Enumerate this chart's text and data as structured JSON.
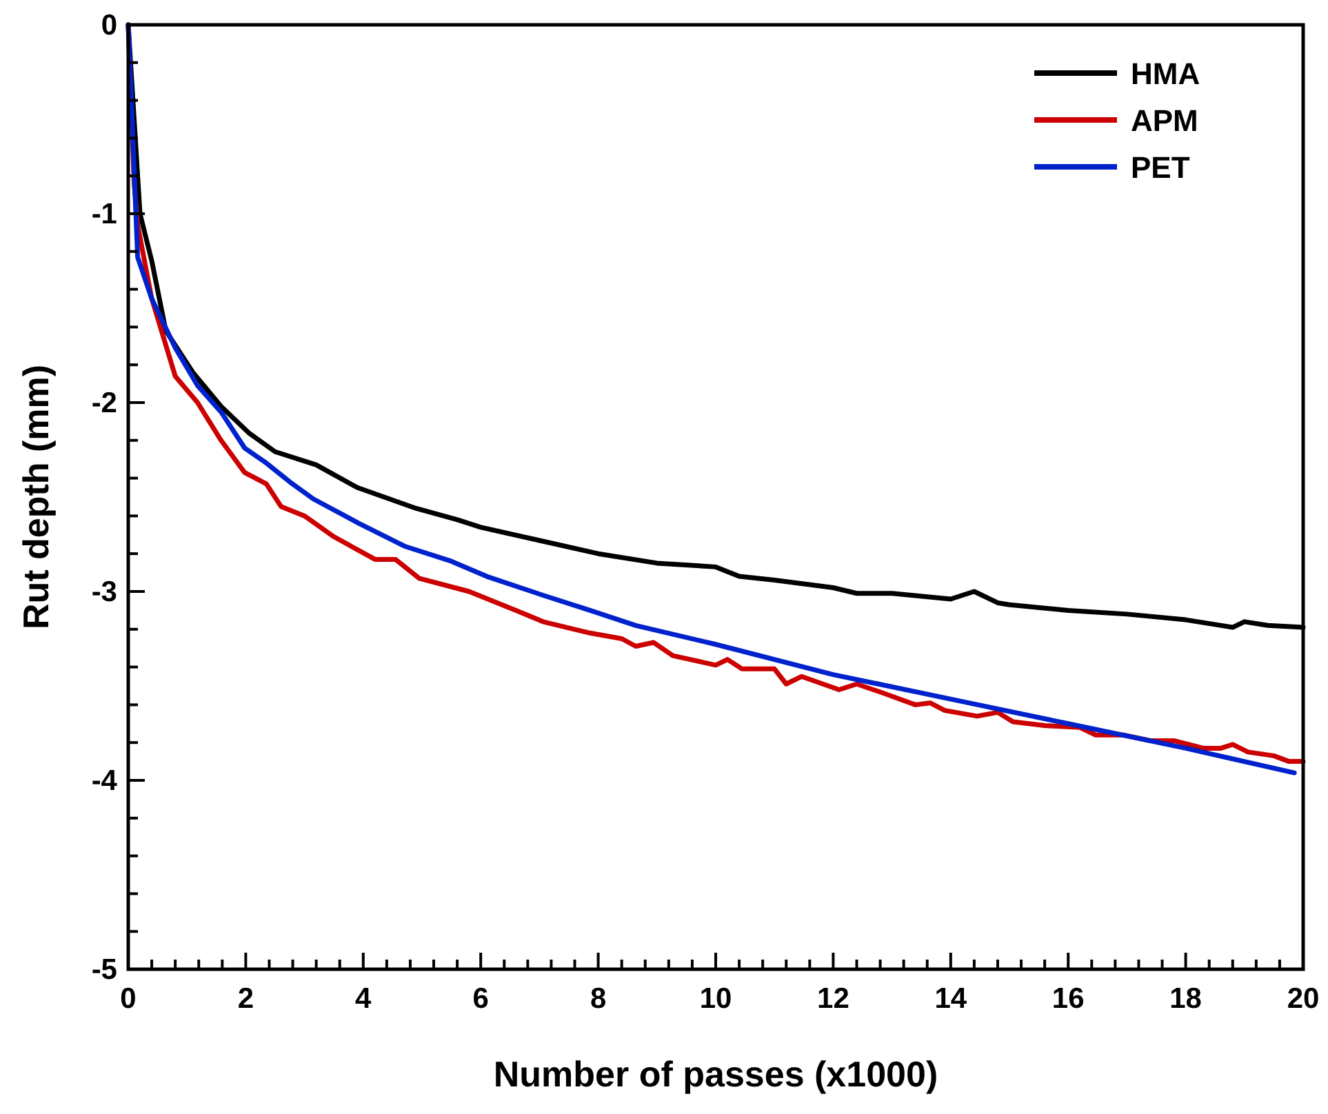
{
  "chart_data": {
    "type": "line",
    "xlabel": "Number of passes (x1000)",
    "ylabel": "Rut depth (mm)",
    "xlim": [
      0,
      20
    ],
    "ylim": [
      -5,
      0
    ],
    "xticks": [
      0,
      {
        "value": 0.4,
        "label": null
      },
      {
        "value": 0.8,
        "label": null
      },
      {
        "value": 1.2,
        "label": null
      },
      {
        "value": 1.6,
        "label": null
      },
      2,
      {
        "value": 2.4,
        "label": null
      },
      {
        "value": 2.8,
        "label": null
      },
      {
        "value": 3.2,
        "label": null
      },
      {
        "value": 3.6,
        "label": null
      },
      4,
      {
        "value": 4.4,
        "label": null
      },
      {
        "value": 4.8,
        "label": null
      },
      {
        "value": 5.2,
        "label": null
      },
      {
        "value": 5.6,
        "label": null
      },
      6,
      {
        "value": 6.4,
        "label": null
      },
      {
        "value": 6.8,
        "label": null
      },
      {
        "value": 7.2,
        "label": null
      },
      {
        "value": 7.6,
        "label": null
      },
      8,
      {
        "value": 8.4,
        "label": null
      },
      {
        "value": 8.8,
        "label": null
      },
      {
        "value": 9.2,
        "label": null
      },
      {
        "value": 9.6,
        "label": null
      },
      10,
      {
        "value": 10.4,
        "label": null
      },
      {
        "value": 10.8,
        "label": null
      },
      {
        "value": 11.2,
        "label": null
      },
      {
        "value": 11.6,
        "label": null
      },
      12,
      {
        "value": 12.4,
        "label": null
      },
      {
        "value": 12.8,
        "label": null
      },
      {
        "value": 13.2,
        "label": null
      },
      {
        "value": 13.6,
        "label": null
      },
      14,
      {
        "value": 14.4,
        "label": null
      },
      {
        "value": 14.8,
        "label": null
      },
      {
        "value": 15.2,
        "label": null
      },
      {
        "value": 15.6,
        "label": null
      },
      16,
      {
        "value": 16.4,
        "label": null
      },
      {
        "value": 16.8,
        "label": null
      },
      {
        "value": 17.2,
        "label": null
      },
      {
        "value": 17.6,
        "label": null
      },
      18,
      {
        "value": 18.4,
        "label": null
      },
      {
        "value": 18.8,
        "label": null
      },
      {
        "value": 19.2,
        "label": null
      },
      {
        "value": 19.6,
        "label": null
      },
      20
    ],
    "yticks": [
      -5,
      {
        "value": -4.8,
        "label": null
      },
      {
        "value": -4.6,
        "label": null
      },
      {
        "value": -4.4,
        "label": null
      },
      {
        "value": -4.2,
        "label": null
      },
      -4,
      {
        "value": -3.8,
        "label": null
      },
      {
        "value": -3.6,
        "label": null
      },
      {
        "value": -3.4,
        "label": null
      },
      {
        "value": -3.2,
        "label": null
      },
      -3,
      {
        "value": -2.8,
        "label": null
      },
      {
        "value": -2.6,
        "label": null
      },
      {
        "value": -2.4,
        "label": null
      },
      {
        "value": -2.2,
        "label": null
      },
      -2,
      {
        "value": -1.8,
        "label": null
      },
      {
        "value": -1.6,
        "label": null
      },
      {
        "value": -1.4,
        "label": null
      },
      {
        "value": -1.2,
        "label": null
      },
      -1,
      {
        "value": -0.8,
        "label": null
      },
      {
        "value": -0.6,
        "label": null
      },
      {
        "value": -0.4,
        "label": null
      },
      {
        "value": -0.2,
        "label": null
      },
      0
    ],
    "legend": "top right",
    "line_style": "solid",
    "marker": "none",
    "series": [
      {
        "name": "HMA",
        "color": "#000000",
        "x": [
          0,
          0.2,
          0.4,
          0.64,
          1.1,
          1.58,
          2.05,
          2.5,
          3.2,
          3.9,
          4.9,
          5.6,
          6,
          7,
          8,
          9,
          10,
          10.4,
          11,
          12,
          12.4,
          13,
          14,
          14.4,
          14.8,
          15,
          16,
          17,
          18,
          18.8,
          19,
          19.4,
          20
        ],
        "values": [
          0,
          -1,
          -1.25,
          -1.62,
          -1.84,
          -2.02,
          -2.16,
          -2.26,
          -2.33,
          -2.45,
          -2.56,
          -2.62,
          -2.66,
          -2.73,
          -2.8,
          -2.85,
          -2.87,
          -2.92,
          -2.94,
          -2.98,
          -3.01,
          -3.01,
          -3.04,
          -3,
          -3.06,
          -3.07,
          -3.1,
          -3.12,
          -3.15,
          -3.19,
          -3.16,
          -3.18,
          -3.19
        ]
      },
      {
        "name": "APM",
        "color": "#cc0000",
        "x": [
          0,
          0.1,
          0.16,
          0.4,
          0.8,
          1.18,
          1.58,
          1.98,
          2.35,
          2.6,
          3,
          3.5,
          4.2,
          4.55,
          4.95,
          5.8,
          6.6,
          7.06,
          7.86,
          8.4,
          8.64,
          8.94,
          9.27,
          10,
          10.2,
          10.45,
          11,
          11.2,
          11.46,
          12.1,
          12.4,
          12.87,
          13.4,
          13.65,
          13.9,
          14.45,
          14.8,
          15.06,
          15.6,
          16.2,
          16.47,
          16.94,
          17.4,
          17.8,
          18.3,
          18.6,
          18.8,
          19.06,
          19.5,
          19.76,
          20
        ],
        "values": [
          0,
          -0.84,
          -1.06,
          -1.45,
          -1.86,
          -2,
          -2.2,
          -2.37,
          -2.43,
          -2.55,
          -2.6,
          -2.71,
          -2.83,
          -2.83,
          -2.93,
          -3,
          -3.1,
          -3.16,
          -3.22,
          -3.25,
          -3.29,
          -3.27,
          -3.34,
          -3.39,
          -3.36,
          -3.41,
          -3.41,
          -3.49,
          -3.45,
          -3.52,
          -3.49,
          -3.54,
          -3.6,
          -3.59,
          -3.63,
          -3.66,
          -3.64,
          -3.69,
          -3.71,
          -3.72,
          -3.76,
          -3.76,
          -3.79,
          -3.79,
          -3.83,
          -3.83,
          -3.81,
          -3.85,
          -3.87,
          -3.9,
          -3.9
        ]
      },
      {
        "name": "PET",
        "color": "#0022cc",
        "x": [
          0,
          0.16,
          0.4,
          0.8,
          1.18,
          1.58,
          1.98,
          2.35,
          2.75,
          3.15,
          3.93,
          4.7,
          5.5,
          6.1,
          7.06,
          7.86,
          8.64,
          10,
          12,
          14,
          16,
          18,
          19.85
        ],
        "values": [
          0,
          -1.23,
          -1.45,
          -1.71,
          -1.91,
          -2.05,
          -2.24,
          -2.32,
          -2.42,
          -2.51,
          -2.64,
          -2.76,
          -2.84,
          -2.92,
          -3.02,
          -3.1,
          -3.18,
          -3.28,
          -3.44,
          -3.57,
          -3.7,
          -3.83,
          -3.96
        ]
      }
    ]
  }
}
